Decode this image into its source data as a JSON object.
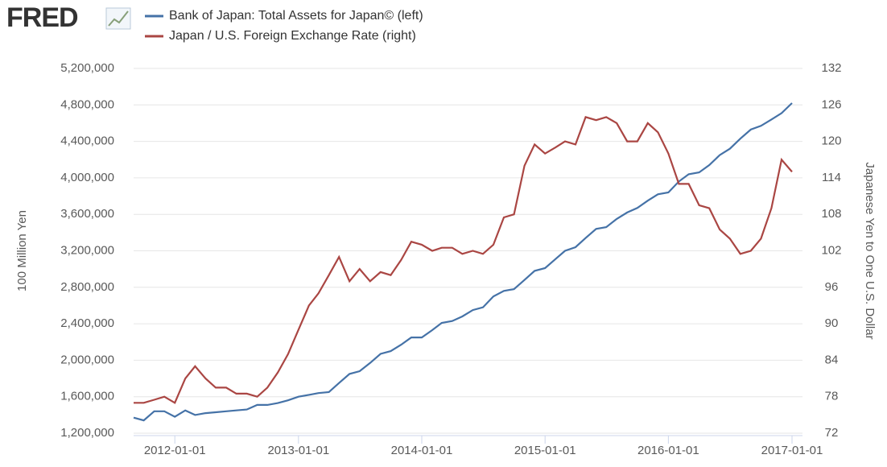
{
  "logo": "FRED",
  "chart_data": {
    "type": "line",
    "x": [
      "2011-09-01",
      "2011-10-01",
      "2011-11-01",
      "2011-12-01",
      "2012-01-01",
      "2012-02-01",
      "2012-03-01",
      "2012-04-01",
      "2012-05-01",
      "2012-06-01",
      "2012-07-01",
      "2012-08-01",
      "2012-09-01",
      "2012-10-01",
      "2012-11-01",
      "2012-12-01",
      "2013-01-01",
      "2013-02-01",
      "2013-03-01",
      "2013-04-01",
      "2013-05-01",
      "2013-06-01",
      "2013-07-01",
      "2013-08-01",
      "2013-09-01",
      "2013-10-01",
      "2013-11-01",
      "2013-12-01",
      "2014-01-01",
      "2014-02-01",
      "2014-03-01",
      "2014-04-01",
      "2014-05-01",
      "2014-06-01",
      "2014-07-01",
      "2014-08-01",
      "2014-09-01",
      "2014-10-01",
      "2014-11-01",
      "2014-12-01",
      "2015-01-01",
      "2015-02-01",
      "2015-03-01",
      "2015-04-01",
      "2015-05-01",
      "2015-06-01",
      "2015-07-01",
      "2015-08-01",
      "2015-09-01",
      "2015-10-01",
      "2015-11-01",
      "2015-12-01",
      "2016-01-01",
      "2016-02-01",
      "2016-03-01",
      "2016-04-01",
      "2016-05-01",
      "2016-06-01",
      "2016-07-01",
      "2016-08-01",
      "2016-09-01",
      "2016-10-01",
      "2016-11-01",
      "2016-12-01",
      "2017-01-01"
    ],
    "series": [
      {
        "name": "Bank of Japan: Total Assets for Japan© (left)",
        "color": "#4572a7",
        "axis": "y",
        "values": [
          1370000,
          1340000,
          1440000,
          1440000,
          1380000,
          1450000,
          1400000,
          1420000,
          1430000,
          1440000,
          1450000,
          1460000,
          1510000,
          1510000,
          1530000,
          1560000,
          1600000,
          1620000,
          1640000,
          1650000,
          1750000,
          1850000,
          1880000,
          1970000,
          2070000,
          2100000,
          2170000,
          2250000,
          2250000,
          2330000,
          2410000,
          2430000,
          2480000,
          2550000,
          2580000,
          2700000,
          2760000,
          2780000,
          2880000,
          2980000,
          3010000,
          3110000,
          3200000,
          3240000,
          3340000,
          3440000,
          3460000,
          3550000,
          3620000,
          3670000,
          3750000,
          3820000,
          3840000,
          3960000,
          4040000,
          4060000,
          4140000,
          4250000,
          4320000,
          4430000,
          4530000,
          4570000,
          4640000,
          4710000,
          4820000
        ]
      },
      {
        "name": "Japan / U.S. Foreign Exchange Rate (right)",
        "color": "#aa4643",
        "axis": "y2",
        "values": [
          77,
          77,
          77.5,
          78,
          77,
          81,
          83,
          81,
          79.5,
          79.5,
          78.5,
          78.5,
          78,
          79.5,
          82,
          85,
          89,
          93,
          95,
          98,
          101,
          97,
          99,
          97,
          98.5,
          98,
          100.5,
          103.5,
          103,
          102,
          102.5,
          102.5,
          101.5,
          102,
          101.5,
          103,
          107.5,
          108,
          116,
          119.5,
          118,
          119,
          120,
          119.5,
          124,
          123.5,
          124,
          123,
          120,
          120,
          123,
          121.5,
          118,
          113,
          113,
          109.5,
          109,
          105.5,
          104,
          101.5,
          102,
          104,
          109,
          117,
          115
        ]
      }
    ],
    "xlim": [
      "2011-09-01",
      "2017-02-01"
    ],
    "xticks": [
      "2012-01-01",
      "2013-01-01",
      "2014-01-01",
      "2015-01-01",
      "2016-01-01",
      "2017-01-01"
    ],
    "ylim": [
      1200000,
      5200000
    ],
    "yticks": [
      {
        "value": 1200000,
        "label": "1,200,000"
      },
      {
        "value": 1600000,
        "label": "1,600,000"
      },
      {
        "value": 2000000,
        "label": "2,000,000"
      },
      {
        "value": 2400000,
        "label": "2,400,000"
      },
      {
        "value": 2800000,
        "label": "2,800,000"
      },
      {
        "value": 3200000,
        "label": "3,200,000"
      },
      {
        "value": 3600000,
        "label": "3,600,000"
      },
      {
        "value": 4000000,
        "label": "4,000,000"
      },
      {
        "value": 4400000,
        "label": "4,400,000"
      },
      {
        "value": 4800000,
        "label": "4,800,000"
      },
      {
        "value": 5200000,
        "label": "5,200,000"
      }
    ],
    "y2lim": [
      72,
      132
    ],
    "y2ticks": [
      72,
      78,
      84,
      90,
      96,
      102,
      108,
      114,
      120,
      126,
      132
    ],
    "ylabel": "100 Million Yen",
    "y2label": "Japanese Yen to One U.S. Dollar",
    "grid": true
  }
}
